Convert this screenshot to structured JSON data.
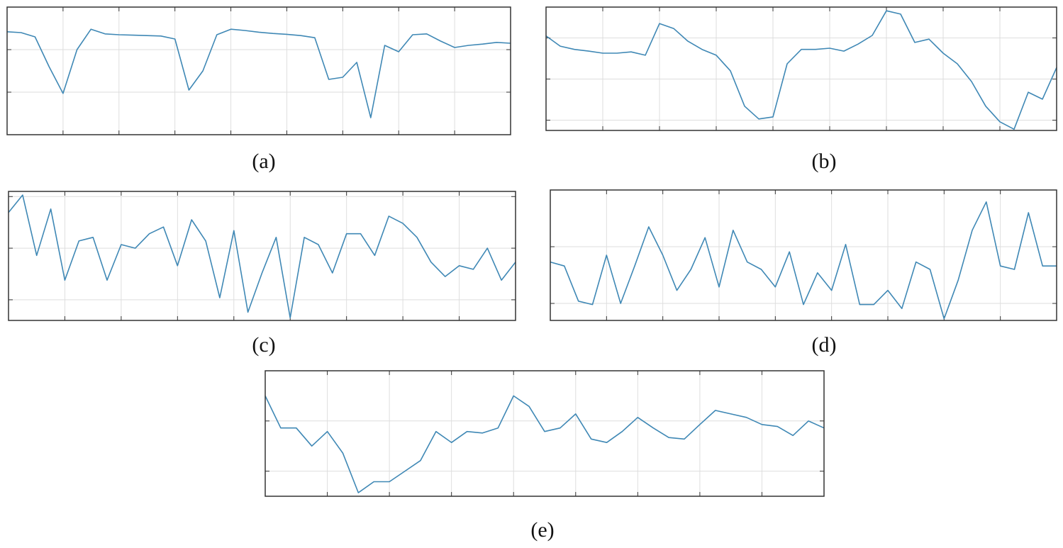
{
  "chart_data": [
    {
      "type": "line",
      "caption": "(a)",
      "color": "#3f88b5",
      "grid": true,
      "xlim": [
        0,
        9
      ],
      "xticks": [
        1,
        2,
        3,
        4,
        5,
        6,
        7,
        8
      ],
      "ylim": [
        0,
        3
      ],
      "yticks": [
        1,
        2
      ],
      "x": [
        0,
        0.25,
        0.5,
        0.75,
        1,
        1.25,
        1.5,
        1.75,
        2,
        2.25,
        2.5,
        2.75,
        3,
        3.25,
        3.5,
        3.75,
        4,
        4.25,
        4.5,
        4.75,
        5,
        5.25,
        5.5,
        5.75,
        6,
        6.25,
        6.5,
        6.75,
        7,
        7.25,
        7.5,
        7.75,
        8,
        8.25,
        8.5,
        8.75,
        9
      ],
      "values": [
        2.42,
        2.4,
        2.3,
        1.6,
        0.97,
        2.0,
        2.48,
        2.37,
        2.35,
        2.34,
        2.33,
        2.32,
        2.25,
        1.05,
        1.5,
        2.35,
        2.48,
        2.45,
        2.41,
        2.38,
        2.36,
        2.33,
        2.28,
        1.3,
        1.35,
        1.7,
        0.4,
        2.1,
        1.95,
        2.35,
        2.37,
        2.2,
        2.05,
        2.1,
        2.13,
        2.17,
        2.15
      ]
    },
    {
      "type": "line",
      "caption": "(b)",
      "color": "#3f88b5",
      "grid": true,
      "xlim": [
        0,
        9
      ],
      "xticks": [
        1,
        2,
        3,
        4,
        5,
        6,
        7,
        8
      ],
      "ylim": [
        0,
        3
      ],
      "yticks": [
        0.25,
        1.25,
        2.25
      ],
      "x": [
        0,
        0.25,
        0.5,
        0.75,
        1,
        1.25,
        1.5,
        1.75,
        2,
        2.25,
        2.5,
        2.75,
        3,
        3.25,
        3.5,
        3.75,
        4,
        4.25,
        4.5,
        4.75,
        5,
        5.25,
        5.5,
        5.75,
        6,
        6.25,
        6.5,
        6.75,
        7,
        7.25,
        7.5,
        7.75,
        8,
        8.25,
        8.5,
        8.75,
        9
      ],
      "values": [
        2.3,
        2.05,
        1.97,
        1.93,
        1.88,
        1.88,
        1.91,
        1.83,
        2.6,
        2.48,
        2.17,
        1.97,
        1.83,
        1.45,
        0.59,
        0.28,
        0.33,
        1.62,
        1.97,
        1.97,
        2.0,
        1.93,
        2.1,
        2.31,
        2.91,
        2.83,
        2.14,
        2.22,
        1.88,
        1.62,
        1.19,
        0.59,
        0.21,
        0.03,
        0.93,
        0.76,
        1.53
      ]
    },
    {
      "type": "line",
      "caption": "(c)",
      "color": "#3f88b5",
      "grid": true,
      "xlim": [
        0,
        9
      ],
      "xticks": [
        1,
        2,
        3,
        4,
        5,
        6,
        7,
        8
      ],
      "ylim": [
        0,
        2.5
      ],
      "yticks": [
        0.4,
        1.4,
        2.4
      ],
      "x": [
        0,
        0.25,
        0.5,
        0.75,
        1,
        1.25,
        1.5,
        1.75,
        2,
        2.25,
        2.5,
        2.75,
        3,
        3.25,
        3.5,
        3.75,
        4,
        4.25,
        4.5,
        4.75,
        5,
        5.25,
        5.5,
        5.75,
        6,
        6.25,
        6.5,
        6.75,
        7,
        7.25,
        7.5,
        7.75,
        8,
        8.25,
        8.5,
        8.75,
        9
      ],
      "values": [
        2.09,
        2.43,
        1.26,
        2.16,
        0.78,
        1.54,
        1.61,
        0.78,
        1.47,
        1.4,
        1.68,
        1.81,
        1.06,
        1.95,
        1.54,
        0.44,
        1.74,
        0.16,
        0.92,
        1.61,
        0.05,
        1.61,
        1.47,
        0.92,
        1.68,
        1.68,
        1.26,
        2.02,
        1.88,
        1.61,
        1.13,
        0.85,
        1.06,
        0.99,
        1.4,
        0.78,
        1.13
      ]
    },
    {
      "type": "line",
      "caption": "(d)",
      "color": "#3f88b5",
      "grid": true,
      "xlim": [
        0,
        9
      ],
      "xticks": [
        1,
        2,
        3,
        4,
        5,
        6,
        7,
        8
      ],
      "ylim": [
        0,
        2.3
      ],
      "yticks": [
        0.3,
        1.3
      ],
      "x": [
        0,
        0.25,
        0.5,
        0.75,
        1,
        1.25,
        1.5,
        1.75,
        2,
        2.25,
        2.5,
        2.75,
        3,
        3.25,
        3.5,
        3.75,
        4,
        4.25,
        4.5,
        4.75,
        5,
        5.25,
        5.5,
        5.75,
        6,
        6.25,
        6.5,
        6.75,
        7,
        7.25,
        7.5,
        7.75,
        8,
        8.25,
        8.5,
        8.75,
        9
      ],
      "values": [
        1.03,
        0.96,
        0.34,
        0.28,
        1.15,
        0.3,
        0.96,
        1.65,
        1.15,
        0.53,
        0.9,
        1.46,
        0.59,
        1.59,
        1.03,
        0.9,
        0.59,
        1.21,
        0.28,
        0.84,
        0.53,
        1.34,
        0.28,
        0.28,
        0.53,
        0.21,
        1.03,
        0.9,
        0.03,
        0.71,
        1.59,
        2.09,
        0.96,
        0.9,
        1.9,
        0.96,
        0.96
      ]
    },
    {
      "type": "line",
      "caption": "(e)",
      "color": "#3f88b5",
      "grid": true,
      "xlim": [
        0,
        9
      ],
      "xticks": [
        1,
        2,
        3,
        4,
        5,
        6,
        7,
        8
      ],
      "ylim": [
        0,
        2.5
      ],
      "yticks": [
        0.5,
        1.5
      ],
      "x": [
        0,
        0.25,
        0.5,
        0.75,
        1,
        1.25,
        1.5,
        1.75,
        2,
        2.25,
        2.5,
        2.75,
        3,
        3.25,
        3.5,
        3.75,
        4,
        4.25,
        4.5,
        4.75,
        5,
        5.25,
        5.5,
        5.75,
        6,
        6.25,
        6.5,
        6.75,
        7,
        7.25,
        7.5,
        7.75,
        8,
        8.25,
        8.5,
        8.75,
        9
      ],
      "values": [
        2.0,
        1.36,
        1.36,
        1.0,
        1.29,
        0.86,
        0.07,
        0.29,
        0.29,
        0.5,
        0.71,
        1.29,
        1.07,
        1.29,
        1.26,
        1.36,
        2.0,
        1.79,
        1.29,
        1.36,
        1.64,
        1.14,
        1.07,
        1.29,
        1.57,
        1.36,
        1.17,
        1.14,
        1.43,
        1.71,
        1.64,
        1.57,
        1.43,
        1.39,
        1.21,
        1.5,
        1.36
      ]
    }
  ]
}
